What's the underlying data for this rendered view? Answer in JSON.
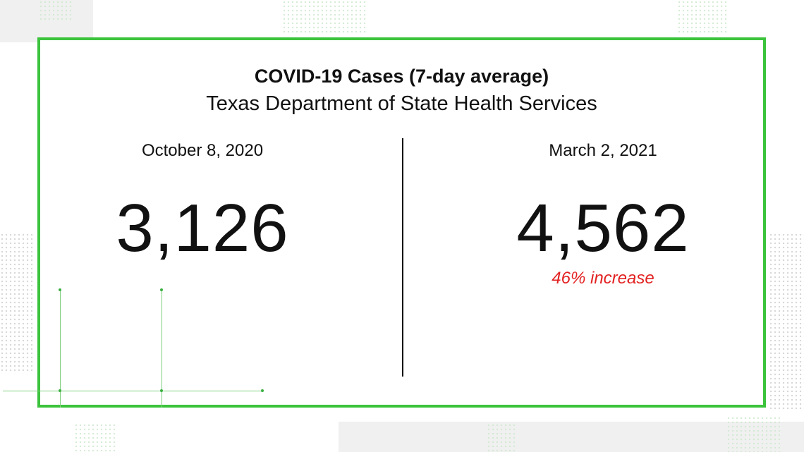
{
  "header": {
    "title": "COVID-19 Cases (7-day average)",
    "subtitle": "Texas Department of State Health Services"
  },
  "comparison": {
    "left": {
      "date": "October 8, 2020",
      "value": "3,126"
    },
    "right": {
      "date": "March 2, 2021",
      "value": "4,562",
      "change": "46% increase"
    }
  },
  "colors": {
    "frame": "#3cc33c",
    "increase": "#e32222",
    "text": "#111111"
  }
}
